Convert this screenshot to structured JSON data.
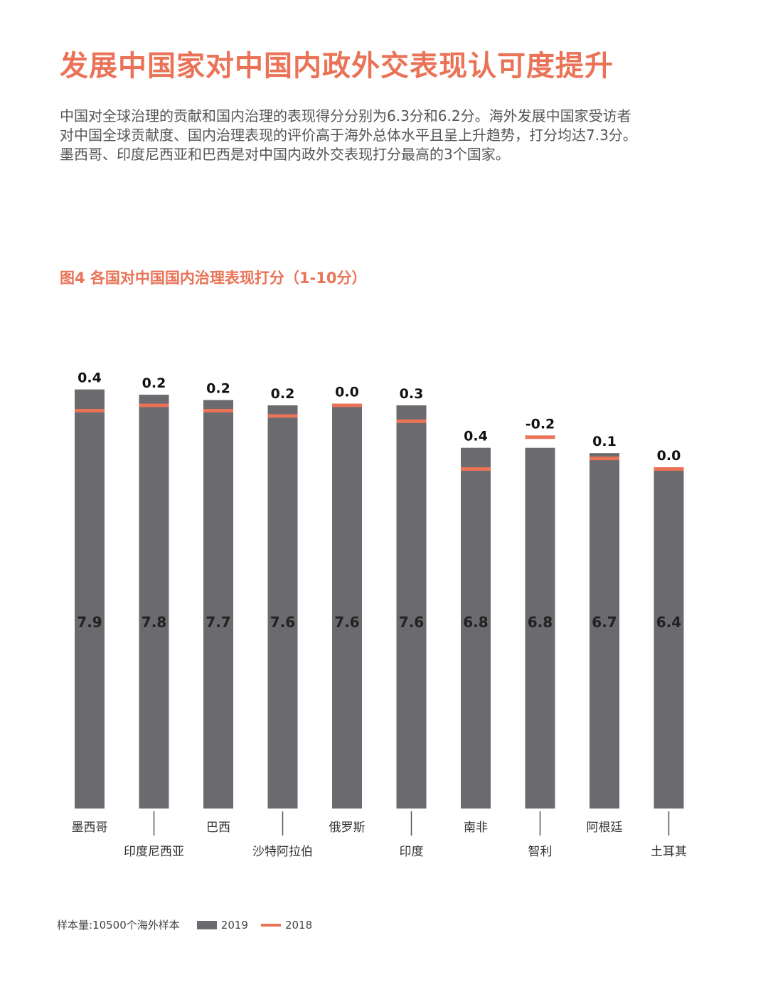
{
  "header": {
    "title": "发展中国家对中国内政外交表现认可度提升",
    "paragraph_lines": [
      "中国对全球治理的贡献和国内治理的表现得分分别为6.3分和6.2分。海外发展中国家受访者",
      "对中国全球贡献度、国内治理表现的评价高于海外总体水平且呈上升趋势，打分均达7.3分。",
      "墨西哥、印度尼西亚和巴西是对中国内政外交表现打分最高的3个国家。"
    ]
  },
  "colors": {
    "accent": "#ea7357",
    "bar": "#6b6a6f",
    "bar_label": "#222222"
  },
  "chart_data": {
    "type": "bar",
    "title": "图4  各国对中国国内治理表现打分（1-10分）",
    "categories": [
      "墨西哥",
      "印度尼西亚",
      "巴西",
      "沙特阿拉伯",
      "俄罗斯",
      "印度",
      "南非",
      "智利",
      "阿根廷",
      "土耳其"
    ],
    "series": [
      {
        "name": "2019",
        "values": [
          7.9,
          7.8,
          7.7,
          7.6,
          7.6,
          7.6,
          6.8,
          6.8,
          6.7,
          6.4
        ]
      },
      {
        "name": "2018",
        "values": [
          7.5,
          7.6,
          7.5,
          7.4,
          7.6,
          7.3,
          6.4,
          7.0,
          6.6,
          6.4
        ]
      }
    ],
    "change_labels": [
      "0.4",
      "0.2",
      "0.2",
      "0.2",
      "0.0",
      "0.3",
      "0.4",
      "-0.2",
      "0.1",
      "0.0"
    ],
    "value_labels": [
      "7.9",
      "7.8",
      "7.7",
      "7.6",
      "7.6",
      "7.6",
      "6.8",
      "6.8",
      "6.7",
      "6.4"
    ]
  },
  "legend": {
    "sample_note": "样本量:10500个海外样本",
    "items": [
      "2019",
      "2018"
    ]
  }
}
